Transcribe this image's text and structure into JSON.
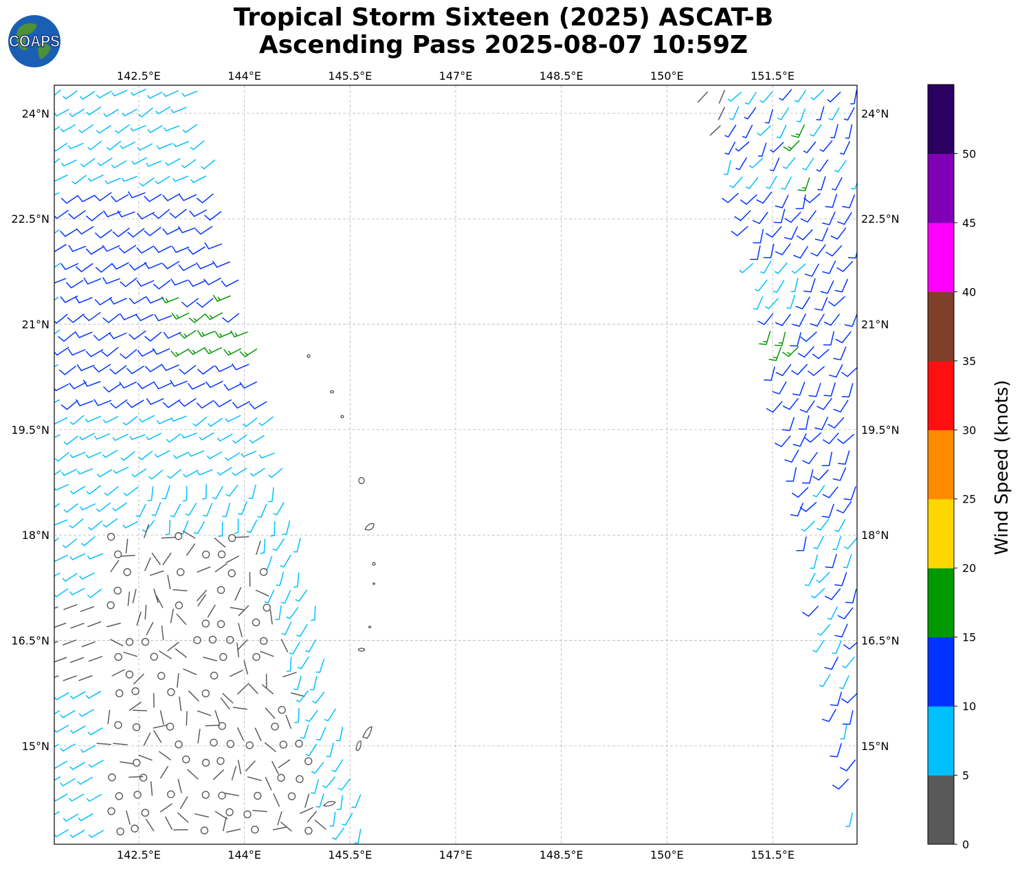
{
  "title": {
    "line1": "Tropical Storm Sixteen (2025) ASCAT-B",
    "line2": "Ascending Pass 2025-08-07 10:59Z"
  },
  "logo": {
    "text": "COAPS",
    "icon": "globe-icon"
  },
  "map": {
    "lon_range": [
      141.3,
      152.7
    ],
    "lat_range": [
      13.6,
      24.4
    ],
    "lon_ticks": [
      "142.5°E",
      "144°E",
      "145.5°E",
      "147°E",
      "148.5°E",
      "150°E",
      "151.5°E"
    ],
    "lat_ticks": [
      "24°N",
      "22.5°N",
      "21°N",
      "19.5°N",
      "18°N",
      "16.5°N",
      "15°N"
    ],
    "gridlines": true
  },
  "colorbar": {
    "label": "Wind Speed (knots)",
    "levels": [
      "0",
      "5",
      "10",
      "15",
      "20",
      "25",
      "30",
      "35",
      "40",
      "45",
      "50"
    ],
    "colors": [
      "#595959",
      "#00bfff",
      "#0033ff",
      "#009900",
      "#ffd700",
      "#ff8c00",
      "#ff1010",
      "#7f3f2a",
      "#ff00ff",
      "#8000b5",
      "#2a0060"
    ]
  },
  "wind_colors": {
    "calm": "#595959",
    "light": "#00bfff",
    "moderate": "#0033ff",
    "fresh": "#009900"
  }
}
